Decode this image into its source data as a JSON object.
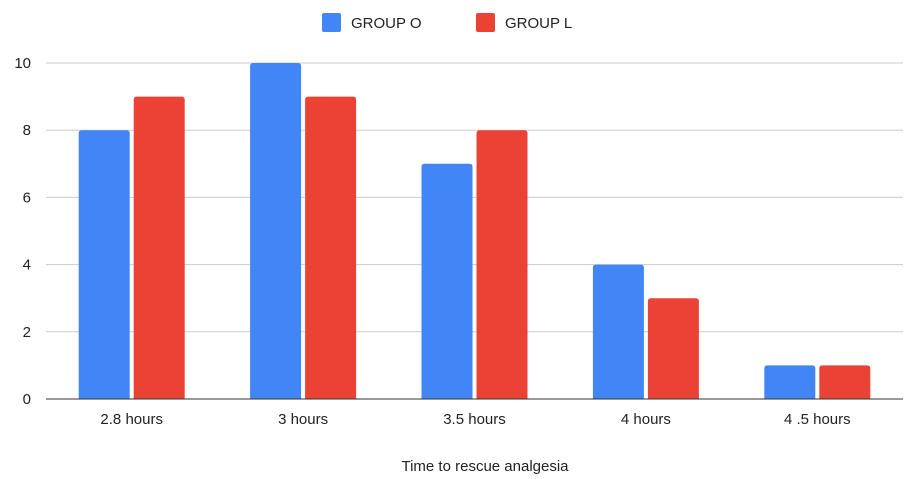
{
  "chart_data": {
    "type": "bar",
    "title": "",
    "xlabel": "Time to rescue analgesia",
    "ylabel": "",
    "categories": [
      "2.8 hours",
      "3  hours",
      "3.5 hours",
      "4 hours",
      "4 .5 hours"
    ],
    "series": [
      {
        "name": "GROUP O",
        "color": "#4285f4",
        "values": [
          8,
          10,
          7,
          4,
          1
        ]
      },
      {
        "name": "GROUP L",
        "color": "#ea4335",
        "values": [
          9,
          9,
          8,
          3,
          1
        ]
      }
    ],
    "ylim": [
      0,
      10
    ],
    "yticks": [
      0,
      2,
      4,
      6,
      8,
      10
    ],
    "grid": true,
    "legend_position": "top"
  }
}
